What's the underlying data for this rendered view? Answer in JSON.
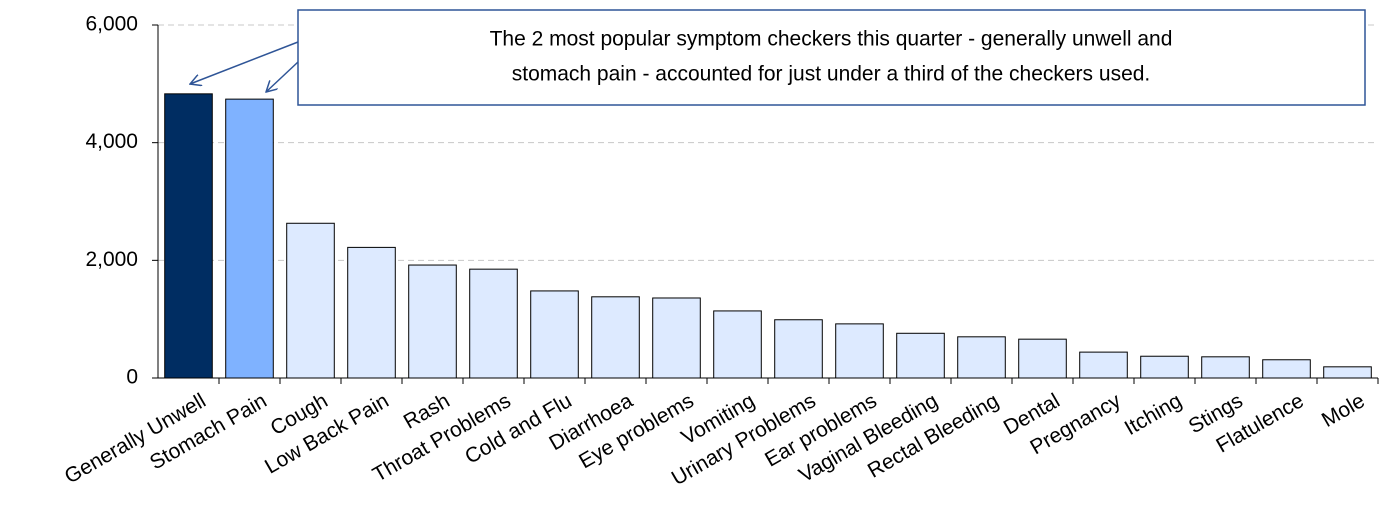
{
  "chart_data": {
    "type": "bar",
    "categories": [
      "Generally Unwell",
      "Stomach Pain",
      "Cough",
      "Low Back Pain",
      "Rash",
      "Throat Problems",
      "Cold and Flu",
      "Diarrhoea",
      "Eye problems",
      "Vomiting",
      "Urinary Problems",
      "Ear problems",
      "Vaginal Bleeding",
      "Rectal Bleeding",
      "Dental",
      "Pregnancy",
      "Itching",
      "Stings",
      "Flatulence",
      "Mole"
    ],
    "values": [
      4830,
      4740,
      2630,
      2220,
      1920,
      1850,
      1480,
      1380,
      1360,
      1140,
      990,
      920,
      760,
      700,
      660,
      440,
      370,
      360,
      310,
      190
    ],
    "colors": [
      "#002d62",
      "#7fb2ff",
      "#ddeaff",
      "#ddeaff",
      "#ddeaff",
      "#ddeaff",
      "#ddeaff",
      "#ddeaff",
      "#ddeaff",
      "#ddeaff",
      "#ddeaff",
      "#ddeaff",
      "#ddeaff",
      "#ddeaff",
      "#ddeaff",
      "#ddeaff",
      "#ddeaff",
      "#ddeaff",
      "#ddeaff",
      "#ddeaff"
    ],
    "ylim": [
      0,
      6000
    ],
    "yticks": [
      0,
      {
        "value": 2000,
        "label": "2,000"
      },
      {
        "value": 4000,
        "label": "4,000"
      },
      {
        "value": 6000,
        "label": "6,000"
      }
    ],
    "grid": true,
    "annotation": [
      "The 2 most popular symptom checkers this quarter - generally unwell and",
      "stomach pain - accounted for just under a third of the checkers used."
    ]
  }
}
